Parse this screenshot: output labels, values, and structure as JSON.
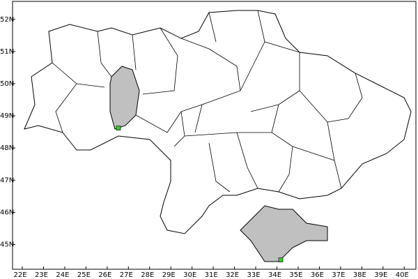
{
  "map": {
    "xlim": [
      21.54,
      40.55
    ],
    "ylim": [
      44.23,
      52.56
    ],
    "xticks": [
      {
        "value": 22,
        "label": "22E"
      },
      {
        "value": 23,
        "label": "23E"
      },
      {
        "value": 24,
        "label": "24E"
      },
      {
        "value": 25,
        "label": "25E"
      },
      {
        "value": 26,
        "label": "26E"
      },
      {
        "value": 27,
        "label": "27E"
      },
      {
        "value": 28,
        "label": "28E"
      },
      {
        "value": 29,
        "label": "29E"
      },
      {
        "value": 30,
        "label": "30E"
      },
      {
        "value": 31,
        "label": "31E"
      },
      {
        "value": 32,
        "label": "32E"
      },
      {
        "value": 33,
        "label": "33E"
      },
      {
        "value": 34,
        "label": "34E"
      },
      {
        "value": 35,
        "label": "35E"
      },
      {
        "value": 36,
        "label": "36E"
      },
      {
        "value": 37,
        "label": "37E"
      },
      {
        "value": 38,
        "label": "38E"
      },
      {
        "value": 39,
        "label": "39E"
      },
      {
        "value": 40,
        "label": "40E"
      }
    ],
    "yticks": [
      {
        "value": 45,
        "label": "45N"
      },
      {
        "value": 46,
        "label": "46N"
      },
      {
        "value": 47,
        "label": "47N"
      },
      {
        "value": 48,
        "label": "48N"
      },
      {
        "value": 49,
        "label": "49N"
      },
      {
        "value": 50,
        "label": "50N"
      },
      {
        "value": 51,
        "label": "51N"
      },
      {
        "value": 52,
        "label": "52N"
      }
    ],
    "points": [
      {
        "lon": 26.53,
        "lat": 48.62,
        "color": "#33cc33"
      },
      {
        "lon": 34.18,
        "lat": 44.52,
        "color": "#33cc33"
      }
    ]
  }
}
